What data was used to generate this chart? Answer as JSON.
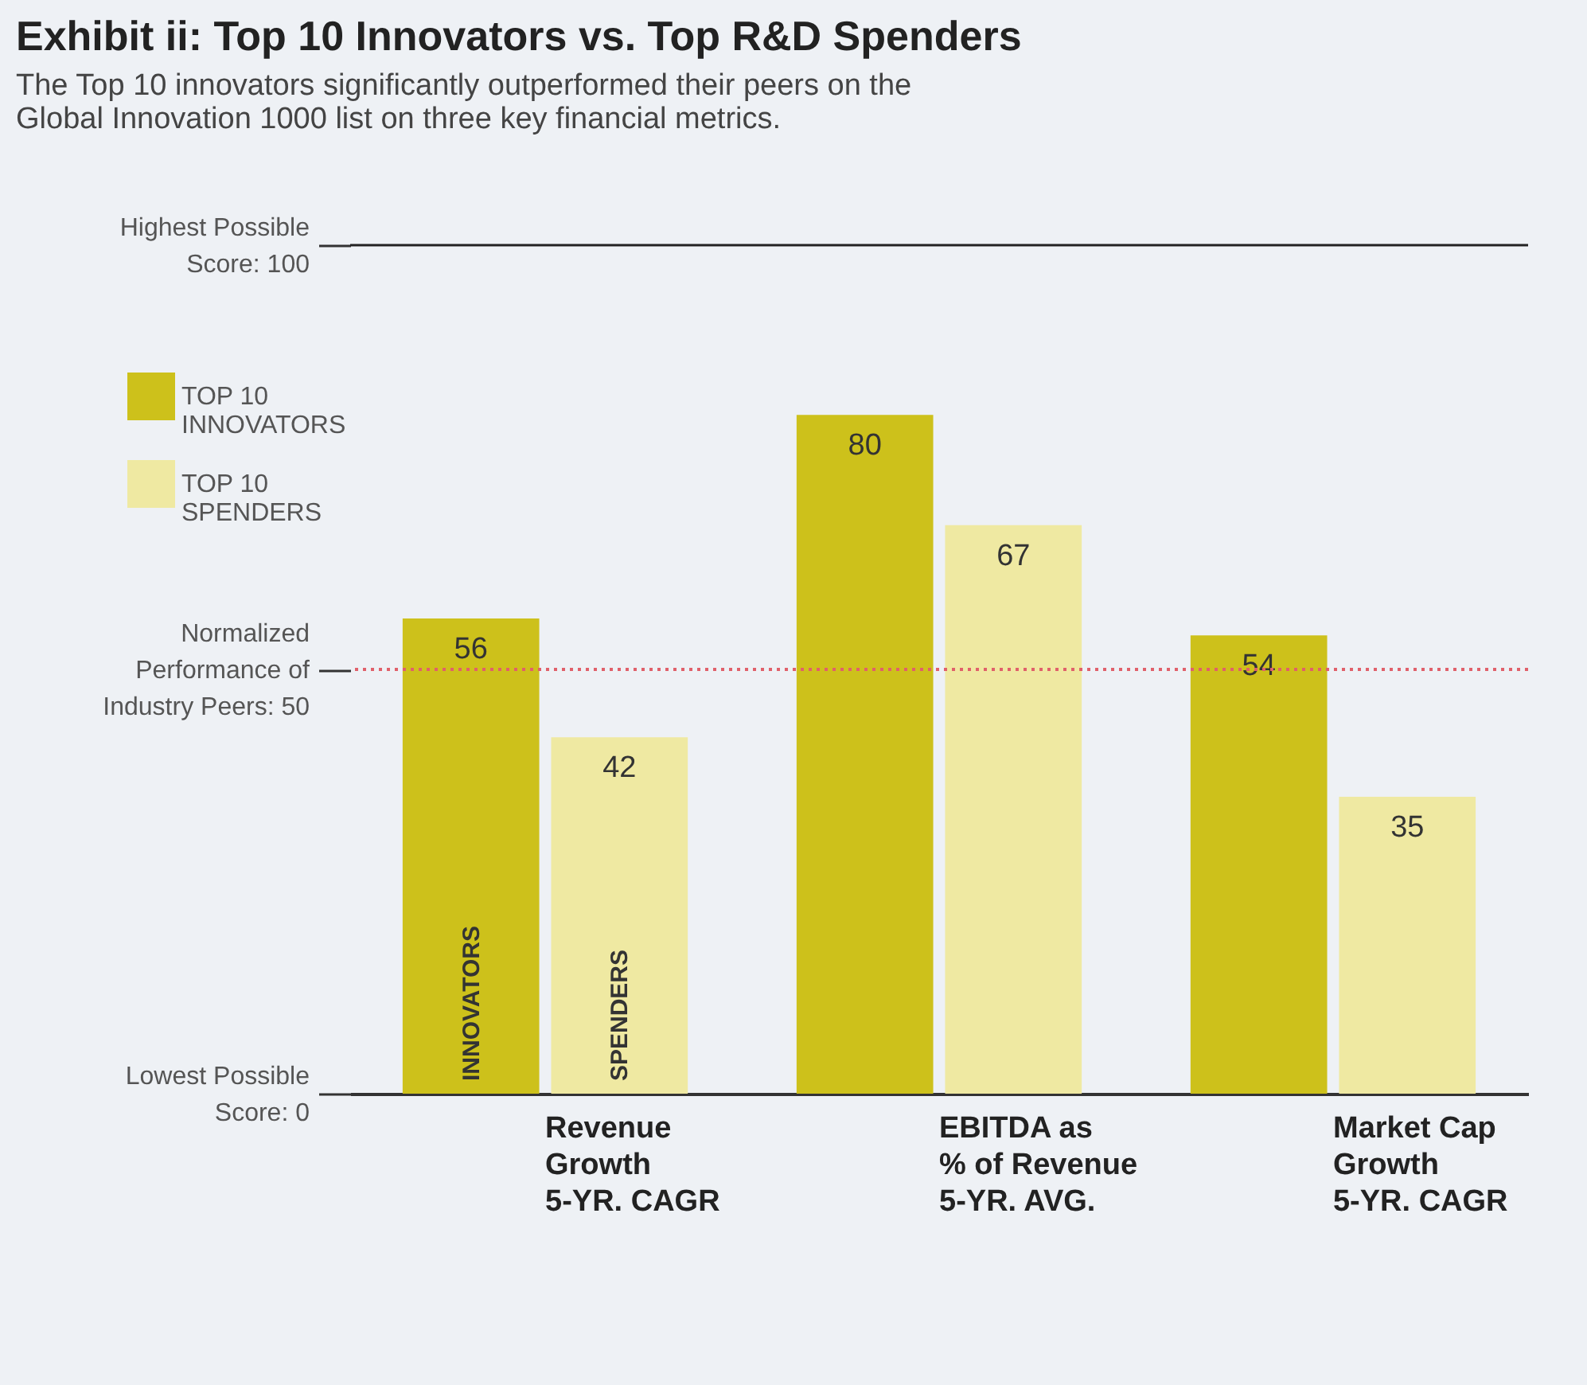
{
  "chart_data": {
    "type": "bar",
    "title": "Exhibit ii: Top 10 Innovators vs. Top R&D Spenders",
    "subtitle": "The Top 10 innovators significantly outperformed their peers on the\nGlobal Innovation 1000 list on three key financial metrics.",
    "categories": [
      "Revenue\nGrowth\n5-YR. CAGR",
      "EBITDA as\n% of Revenue\n5-YR. AVG.",
      "Market Cap\nGrowth\n5-YR. CAGR"
    ],
    "series": [
      {
        "name": "TOP 10\nINNOVATORS",
        "color": "#cdc11b",
        "values": [
          56,
          80,
          54
        ]
      },
      {
        "name": "TOP 10\nSPENDERS",
        "color": "#efe9a2",
        "values": [
          42,
          67,
          35
        ]
      }
    ],
    "ylim": [
      0,
      100
    ],
    "yticks": [
      {
        "value": 0,
        "label": "Lowest Possible\nScore: 0"
      },
      {
        "value": 50,
        "label": "Normalized\nPerformance of\nIndustry Peers: 50"
      },
      {
        "value": 100,
        "label": "Highest Possible\nScore: 100"
      }
    ],
    "ref_lines": [
      {
        "axis": "y",
        "value": 50,
        "color": "#e0606a",
        "line_style": "dotted"
      },
      {
        "axis": "y",
        "value": 100,
        "color": "#222222",
        "line_style": "solid"
      }
    ],
    "annotations": [
      "INNOVATORS",
      "SPENDERS"
    ],
    "data_labels": true,
    "grid": false,
    "legend": "top left"
  }
}
